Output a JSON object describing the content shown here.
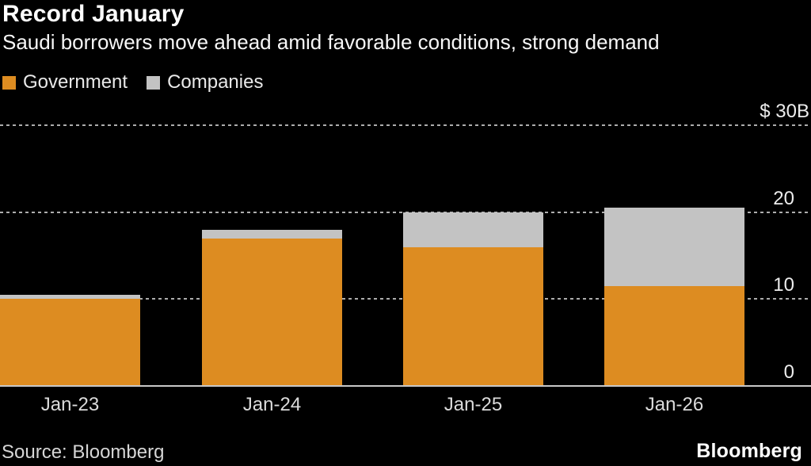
{
  "header": {
    "title": "Record January",
    "subtitle": "Saudi borrowers move ahead amid favorable conditions, strong demand"
  },
  "legend": [
    {
      "label": "Government",
      "color": "#dd8c21"
    },
    {
      "label": "Companies",
      "color": "#c3c3c3"
    }
  ],
  "footer": {
    "source": "Source: Bloomberg",
    "logo": "Bloomberg"
  },
  "chart_data": {
    "type": "bar",
    "stacked": true,
    "title": "Record January",
    "subtitle": "Saudi borrowers move ahead amid favorable conditions, strong demand",
    "categories": [
      "Jan-23",
      "Jan-24",
      "Jan-25",
      "Jan-26"
    ],
    "series": [
      {
        "name": "Government",
        "color": "#dd8c21",
        "values": [
          10.0,
          17.0,
          16.0,
          11.5
        ]
      },
      {
        "name": "Companies",
        "color": "#c3c3c3",
        "values": [
          0.5,
          1.0,
          4.0,
          9.0
        ]
      }
    ],
    "unit": "$B",
    "ylim": [
      0,
      30
    ],
    "yticks": [
      {
        "value": 30,
        "label": "$ 30B"
      },
      {
        "value": 20,
        "label": "20"
      },
      {
        "value": 10,
        "label": "10"
      },
      {
        "value": 0,
        "label": "0"
      }
    ],
    "grid": "horizontal-dotted",
    "legend_position": "top-left",
    "source": "Bloomberg"
  }
}
